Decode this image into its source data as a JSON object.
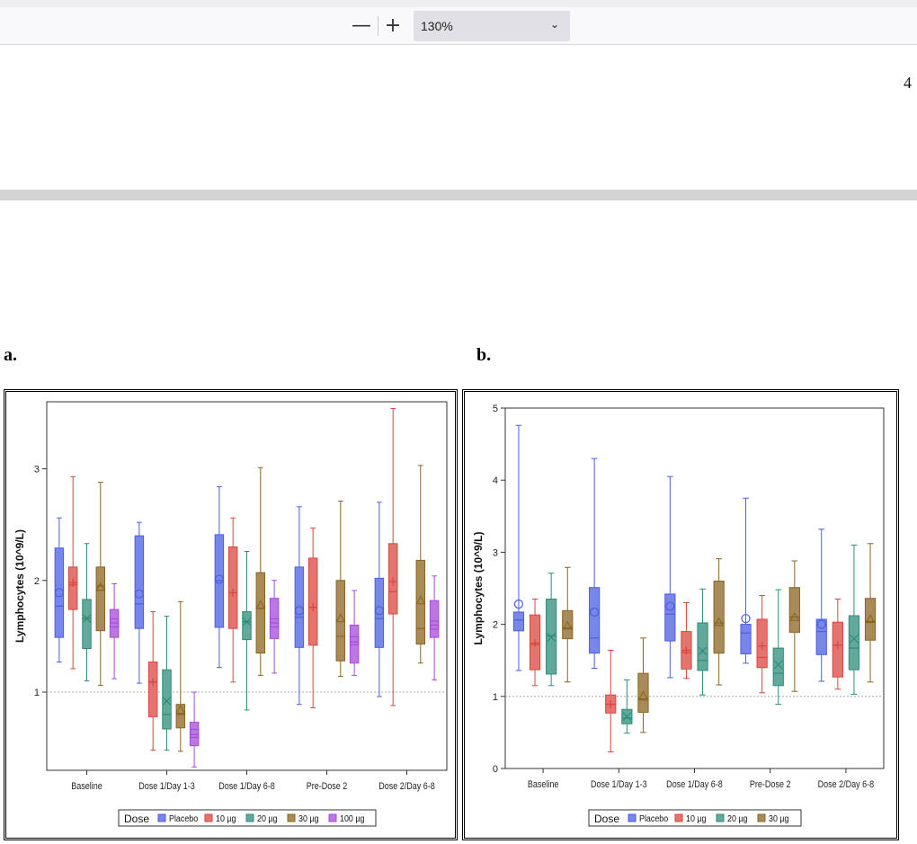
{
  "toolbar": {
    "zoom_out_label": "—",
    "zoom_in_label": "+",
    "zoom_value": "130%",
    "dropdown_icon": "chevron-down-icon"
  },
  "page": {
    "page_number": "4"
  },
  "panels": {
    "a_label": "a.",
    "b_label": "b."
  },
  "chart_data": [
    {
      "type": "box",
      "panel": "a",
      "ylabel": "Lymphocytes (10^9/L)",
      "ylim": [
        0.3,
        3.6
      ],
      "yticks": [
        1,
        2,
        3
      ],
      "reference_line": 1,
      "categories": [
        "Baseline",
        "Dose 1/Day 1-3",
        "Dose 1/Day 6-8",
        "Pre-Dose 2",
        "Dose 2/Day 6-8"
      ],
      "legend_title": "Dose",
      "series": [
        {
          "name": "Placebo",
          "color": "#4a5ee0",
          "marker": "circle",
          "boxes": [
            {
              "min": 1.27,
              "q1": 1.49,
              "median": 1.77,
              "q3": 2.29,
              "max": 2.56,
              "mean": 1.89
            },
            {
              "min": 1.08,
              "q1": 1.57,
              "median": 1.79,
              "q3": 2.4,
              "max": 2.52,
              "mean": 1.88
            },
            {
              "min": 1.22,
              "q1": 1.58,
              "median": 2.0,
              "q3": 2.41,
              "max": 2.84,
              "mean": 2.01
            },
            {
              "min": 0.89,
              "q1": 1.4,
              "median": 1.67,
              "q3": 2.12,
              "max": 2.66,
              "mean": 1.73
            },
            {
              "min": 0.96,
              "q1": 1.4,
              "median": 1.66,
              "q3": 2.02,
              "max": 2.7,
              "mean": 1.73
            }
          ]
        },
        {
          "name": "10 µg",
          "color": "#d9453e",
          "marker": "plus",
          "boxes": [
            {
              "min": 1.21,
              "q1": 1.74,
              "median": 1.96,
              "q3": 2.12,
              "max": 2.93,
              "mean": 1.98
            },
            {
              "min": 0.48,
              "q1": 0.78,
              "median": 1.09,
              "q3": 1.27,
              "max": 1.72,
              "mean": 1.09
            },
            {
              "min": 1.09,
              "q1": 1.57,
              "median": 1.89,
              "q3": 2.3,
              "max": 2.56,
              "mean": 1.89
            },
            {
              "min": 0.86,
              "q1": 1.42,
              "median": 1.76,
              "q3": 2.2,
              "max": 2.47,
              "mean": 1.76
            },
            {
              "min": 0.88,
              "q1": 1.7,
              "median": 1.9,
              "q3": 2.33,
              "max": 3.54,
              "mean": 1.99
            }
          ]
        },
        {
          "name": "20 µg",
          "color": "#2c8c78",
          "marker": "x",
          "boxes": [
            {
              "min": 1.1,
              "q1": 1.39,
              "median": 1.66,
              "q3": 1.83,
              "max": 2.33,
              "mean": 1.66
            },
            {
              "min": 0.48,
              "q1": 0.67,
              "median": 0.8,
              "q3": 1.2,
              "max": 1.68,
              "mean": 0.92
            },
            {
              "min": 0.84,
              "q1": 1.47,
              "median": 1.63,
              "q3": 1.72,
              "max": 2.26,
              "mean": 1.63
            },
            null,
            null
          ]
        },
        {
          "name": "30 µg",
          "color": "#8b6420",
          "marker": "triangle",
          "boxes": [
            {
              "min": 1.06,
              "q1": 1.55,
              "median": 1.95,
              "q3": 2.12,
              "max": 2.88,
              "mean": 1.94
            },
            {
              "min": 0.47,
              "q1": 0.68,
              "median": 0.8,
              "q3": 0.89,
              "max": 1.81,
              "mean": 0.84
            },
            {
              "min": 1.15,
              "q1": 1.35,
              "median": 1.75,
              "q3": 2.07,
              "max": 3.01,
              "mean": 1.78
            },
            {
              "min": 1.14,
              "q1": 1.28,
              "median": 1.5,
              "q3": 2.0,
              "max": 2.71,
              "mean": 1.66
            },
            {
              "min": 1.26,
              "q1": 1.43,
              "median": 1.57,
              "q3": 2.18,
              "max": 3.03,
              "mean": 1.82
            }
          ]
        },
        {
          "name": "100 µg",
          "color": "#a64ad9",
          "marker": "square",
          "boxes": [
            {
              "min": 1.12,
              "q1": 1.49,
              "median": 1.62,
              "q3": 1.74,
              "max": 1.97,
              "mean": 1.62
            },
            {
              "min": 0.33,
              "q1": 0.52,
              "median": 0.62,
              "q3": 0.73,
              "max": 1.0,
              "mean": 0.63
            },
            {
              "min": 1.17,
              "q1": 1.48,
              "median": 1.62,
              "q3": 1.84,
              "max": 2.0,
              "mean": 1.62
            },
            {
              "min": 1.15,
              "q1": 1.26,
              "median": 1.45,
              "q3": 1.6,
              "max": 1.91,
              "mean": 1.46
            },
            {
              "min": 1.11,
              "q1": 1.49,
              "median": 1.6,
              "q3": 1.82,
              "max": 2.04,
              "mean": 1.6
            }
          ]
        }
      ]
    },
    {
      "type": "box",
      "panel": "b",
      "ylabel": "Lymphocytes (10^9/L)",
      "ylim": [
        0,
        5
      ],
      "yticks": [
        0,
        1,
        2,
        3,
        4,
        5
      ],
      "reference_line": 1,
      "categories": [
        "Baseline",
        "Dose 1/Day 1-3",
        "Dose 1/Day 6-8",
        "Pre-Dose 2",
        "Dose 2/Day 6-8"
      ],
      "legend_title": "Dose",
      "series": [
        {
          "name": "Placebo",
          "color": "#4a5ee0",
          "marker": "circle",
          "boxes": [
            {
              "min": 1.36,
              "q1": 1.91,
              "median": 2.06,
              "q3": 2.17,
              "max": 4.76,
              "mean": 2.28
            },
            {
              "min": 1.39,
              "q1": 1.6,
              "median": 1.81,
              "q3": 2.51,
              "max": 4.3,
              "mean": 2.17
            },
            {
              "min": 1.26,
              "q1": 1.77,
              "median": 2.14,
              "q3": 2.42,
              "max": 4.05,
              "mean": 2.25
            },
            {
              "min": 1.46,
              "q1": 1.59,
              "median": 1.88,
              "q3": 2.0,
              "max": 3.75,
              "mean": 2.08
            },
            {
              "min": 1.21,
              "q1": 1.58,
              "median": 1.9,
              "q3": 2.07,
              "max": 3.32,
              "mean": 2.0
            }
          ]
        },
        {
          "name": "10 µg",
          "color": "#d9453e",
          "marker": "plus",
          "boxes": [
            {
              "min": 1.15,
              "q1": 1.37,
              "median": 1.72,
              "q3": 2.13,
              "max": 2.35,
              "mean": 1.74
            },
            {
              "min": 0.23,
              "q1": 0.77,
              "median": 0.89,
              "q3": 1.02,
              "max": 1.64,
              "mean": 0.89
            },
            {
              "min": 1.25,
              "q1": 1.38,
              "median": 1.61,
              "q3": 1.9,
              "max": 2.3,
              "mean": 1.64
            },
            {
              "min": 1.05,
              "q1": 1.4,
              "median": 1.54,
              "q3": 2.07,
              "max": 2.4,
              "mean": 1.7
            },
            {
              "min": 1.1,
              "q1": 1.27,
              "median": 1.71,
              "q3": 2.03,
              "max": 2.35,
              "mean": 1.71
            }
          ]
        },
        {
          "name": "20 µg",
          "color": "#2c8c78",
          "marker": "x",
          "boxes": [
            {
              "min": 1.15,
              "q1": 1.31,
              "median": 1.84,
              "q3": 2.35,
              "max": 2.71,
              "mean": 1.82
            },
            {
              "min": 0.49,
              "q1": 0.62,
              "median": 0.7,
              "q3": 0.82,
              "max": 1.23,
              "mean": 0.72
            },
            {
              "min": 1.02,
              "q1": 1.36,
              "median": 1.5,
              "q3": 2.02,
              "max": 2.49,
              "mean": 1.63
            },
            {
              "min": 0.89,
              "q1": 1.15,
              "median": 1.32,
              "q3": 1.67,
              "max": 2.48,
              "mean": 1.44
            },
            {
              "min": 1.03,
              "q1": 1.37,
              "median": 1.67,
              "q3": 2.12,
              "max": 3.1,
              "mean": 1.8
            }
          ]
        },
        {
          "name": "30 µg",
          "color": "#8b6420",
          "marker": "triangle",
          "boxes": [
            {
              "min": 1.2,
              "q1": 1.8,
              "median": 1.95,
              "q3": 2.19,
              "max": 2.79,
              "mean": 1.98
            },
            {
              "min": 0.5,
              "q1": 0.78,
              "median": 0.95,
              "q3": 1.32,
              "max": 1.81,
              "mean": 1.01
            },
            {
              "min": 1.16,
              "q1": 1.6,
              "median": 2.02,
              "q3": 2.6,
              "max": 2.91,
              "mean": 2.03
            },
            {
              "min": 1.07,
              "q1": 1.89,
              "median": 2.1,
              "q3": 2.51,
              "max": 2.88,
              "mean": 2.1
            },
            {
              "min": 1.2,
              "q1": 1.78,
              "median": 2.04,
              "q3": 2.36,
              "max": 3.12,
              "mean": 2.07
            }
          ]
        }
      ]
    }
  ]
}
